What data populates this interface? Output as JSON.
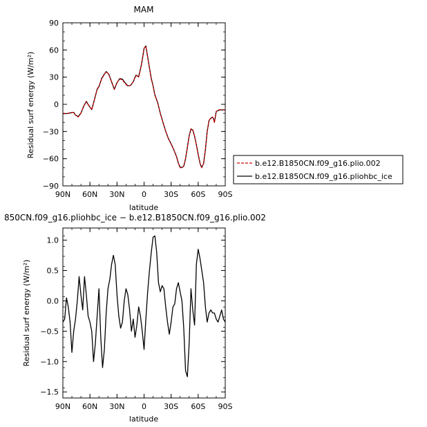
{
  "chart_data": [
    {
      "type": "line",
      "title": "MAM",
      "xlabel": "latitude",
      "ylabel": "Residual surf energy (W/m²)",
      "xlim": [
        90,
        -90
      ],
      "ylim": [
        -90,
        90
      ],
      "x_tick_values": [
        90,
        60,
        30,
        0,
        -30,
        -60,
        -90
      ],
      "x_tick_labels": [
        "90N",
        "60N",
        "30N",
        "0",
        "30S",
        "60S",
        "90S"
      ],
      "y_tick_values": [
        -90,
        -60,
        -30,
        0,
        30,
        60,
        90
      ],
      "y_tick_labels": [
        "−90",
        "−60",
        "−30",
        "0",
        "30",
        "60",
        "90"
      ],
      "legend_position": "right",
      "series": [
        {
          "name": "b.e12.B1850CN.f09_g16.plio.002",
          "color": "#cc0000",
          "dash": "dashed",
          "x": [
            90,
            85,
            80,
            78,
            76,
            73,
            70,
            67,
            64,
            62,
            58,
            55,
            52,
            50,
            47,
            44,
            42,
            39,
            36,
            33,
            30,
            27,
            24,
            21,
            18,
            15,
            12,
            9,
            6,
            3,
            1,
            0,
            -2,
            -4,
            -6,
            -8,
            -10,
            -12,
            -15,
            -18,
            -21,
            -24,
            -27,
            -30,
            -33,
            -36,
            -38,
            -40,
            -42,
            -44,
            -46,
            -48,
            -50,
            -52,
            -54,
            -56,
            -58,
            -60,
            -62,
            -63,
            -64,
            -66,
            -68,
            -70,
            -72,
            -74,
            -76,
            -77,
            -78,
            -80,
            -83,
            -86,
            -90
          ],
          "y": [
            -10,
            -10,
            -9,
            -9,
            -12,
            -14,
            -10,
            -2,
            3,
            0,
            -6,
            5,
            17,
            20,
            28,
            33,
            36,
            33,
            25,
            17,
            24,
            28,
            27,
            23,
            20,
            21,
            25,
            32,
            30,
            43,
            55,
            62,
            64,
            52,
            40,
            28,
            20,
            10,
            2,
            -10,
            -20,
            -30,
            -38,
            -44,
            -50,
            -58,
            -65,
            -70,
            -70,
            -68,
            -60,
            -48,
            -35,
            -27,
            -28,
            -35,
            -45,
            -55,
            -65,
            -68,
            -70,
            -65,
            -50,
            -30,
            -18,
            -15,
            -14,
            -16,
            -20,
            -8,
            -6,
            -6,
            -6
          ]
        },
        {
          "name": "b.e12.B1850CN.f09_g16.pliohbc_ice",
          "color": "#000000",
          "dash": "solid",
          "x": [
            90,
            85,
            80,
            78,
            76,
            73,
            70,
            67,
            64,
            62,
            58,
            55,
            52,
            50,
            47,
            44,
            42,
            39,
            36,
            33,
            30,
            27,
            24,
            21,
            18,
            15,
            12,
            9,
            6,
            3,
            1,
            0,
            -2,
            -4,
            -6,
            -8,
            -10,
            -12,
            -15,
            -18,
            -21,
            -24,
            -27,
            -30,
            -33,
            -36,
            -38,
            -40,
            -42,
            -44,
            -46,
            -48,
            -50,
            -52,
            -54,
            -56,
            -58,
            -60,
            -62,
            -63,
            -64,
            -66,
            -68,
            -70,
            -72,
            -74,
            -76,
            -77,
            -78,
            -80,
            -83,
            -86,
            -90
          ],
          "y": [
            -10.4,
            -10.2,
            -9.1,
            -8.8,
            -11.9,
            -13.5,
            -9.6,
            -2.3,
            3.4,
            -0.3,
            -5.8,
            5.3,
            16.6,
            19.5,
            28.6,
            33.4,
            36.2,
            33.1,
            24.8,
            16.5,
            23.8,
            28.4,
            27.8,
            23.7,
            20.4,
            20.9,
            24.8,
            32.3,
            30.5,
            43.5,
            55.2,
            61.8,
            64.4,
            52.5,
            40.3,
            28.7,
            20.5,
            10.4,
            2.3,
            -9.8,
            -20.1,
            -29.7,
            -37.8,
            -43.7,
            -50.2,
            -57.6,
            -64.8,
            -69.4,
            -69.7,
            -68.4,
            -59.9,
            -47.7,
            -34.6,
            -27.2,
            -28.5,
            -35.3,
            -44.6,
            -55.1,
            -64.7,
            -67.8,
            -69.4,
            -65.3,
            -50.1,
            -29.8,
            -17.9,
            -15.4,
            -14.2,
            -16.1,
            -19.8,
            -7.9,
            -6.4,
            -6.1,
            -6.2
          ]
        }
      ]
    },
    {
      "type": "line",
      "title": "850CN.f09_g16.pliohbc_ice − b.e12.B1850CN.f09_g16.plio.002",
      "xlabel": "latitude",
      "ylabel": "Residual surf energy (W/m²)",
      "xlim": [
        90,
        -90
      ],
      "ylim": [
        -1.6,
        1.2
      ],
      "x_tick_values": [
        90,
        60,
        30,
        0,
        -30,
        -60,
        -90
      ],
      "x_tick_labels": [
        "90N",
        "60N",
        "30N",
        "0",
        "30S",
        "60S",
        "90S"
      ],
      "y_tick_values": [
        -1.5,
        -1.0,
        -0.5,
        0.0,
        0.5,
        1.0
      ],
      "y_tick_labels": [
        "−1.5",
        "−1.0",
        "−0.5",
        "0.0",
        "0.5",
        "1.0"
      ],
      "series": [
        {
          "color": "#000000",
          "x": [
            90,
            88,
            86,
            84,
            82,
            80,
            78,
            76,
            74,
            72,
            70,
            68,
            66,
            64,
            62,
            60,
            58,
            56,
            54,
            52,
            50,
            48,
            46,
            44,
            42,
            40,
            38,
            36,
            34,
            32,
            30,
            28,
            26,
            24,
            22,
            20,
            18,
            16,
            14,
            12,
            10,
            8,
            6,
            4,
            2,
            0,
            -2,
            -4,
            -6,
            -8,
            -10,
            -12,
            -14,
            -16,
            -18,
            -20,
            -22,
            -24,
            -26,
            -28,
            -30,
            -32,
            -34,
            -36,
            -38,
            -40,
            -42,
            -44,
            -46,
            -48,
            -50,
            -52,
            -54,
            -56,
            -58,
            -60,
            -62,
            -64,
            -66,
            -68,
            -70,
            -72,
            -74,
            -76,
            -78,
            -80,
            -82,
            -84,
            -86,
            -88,
            -90
          ],
          "y": [
            -0.35,
            -0.3,
            0.05,
            -0.1,
            -0.35,
            -0.85,
            -0.5,
            -0.3,
            0.0,
            0.4,
            0.1,
            -0.15,
            0.4,
            0.1,
            -0.25,
            -0.35,
            -0.5,
            -1.0,
            -0.7,
            -0.25,
            0.2,
            -0.6,
            -1.1,
            -0.8,
            -0.2,
            0.2,
            0.35,
            0.6,
            0.75,
            0.6,
            0.1,
            -0.25,
            -0.45,
            -0.35,
            0.0,
            0.2,
            0.1,
            -0.15,
            -0.5,
            -0.3,
            -0.6,
            -0.4,
            -0.1,
            -0.25,
            -0.5,
            -0.8,
            -0.3,
            0.15,
            0.5,
            0.8,
            1.05,
            1.07,
            0.8,
            0.3,
            0.15,
            0.25,
            0.2,
            -0.1,
            -0.35,
            -0.55,
            -0.35,
            -0.1,
            -0.05,
            0.2,
            0.3,
            0.15,
            0.0,
            -0.45,
            -1.15,
            -1.25,
            -0.7,
            0.2,
            -0.15,
            -0.4,
            0.6,
            0.85,
            0.7,
            0.5,
            0.3,
            -0.1,
            -0.35,
            -0.2,
            -0.15,
            -0.2,
            -0.2,
            -0.3,
            -0.35,
            -0.25,
            -0.15,
            -0.3,
            -0.35
          ]
        }
      ]
    }
  ]
}
